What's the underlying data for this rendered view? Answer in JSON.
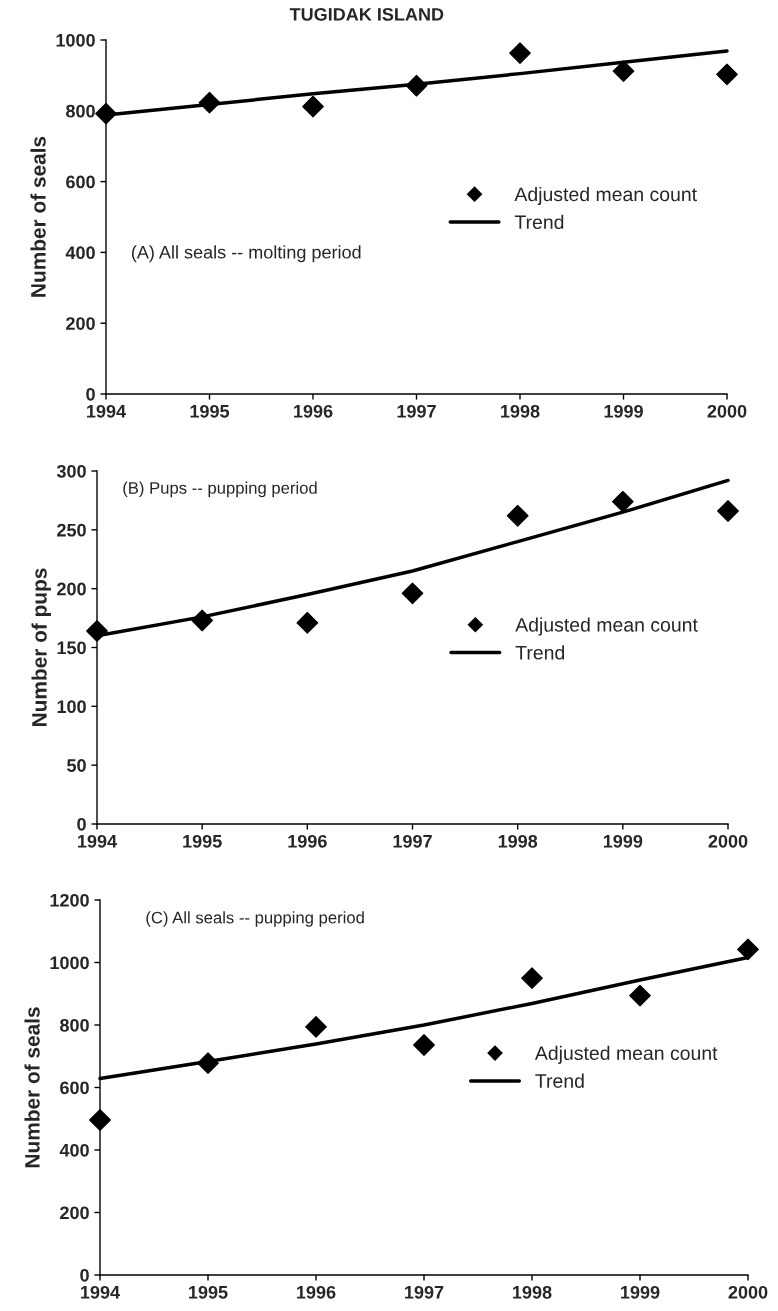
{
  "chart_data": [
    {
      "type": "scatter",
      "title": "TUGIDAK ISLAND",
      "ylabel": "Number of seals",
      "annotations": [
        "(A) All seals -- molting period"
      ],
      "x": [
        1994,
        1995,
        1996,
        1997,
        1998,
        1999,
        2000
      ],
      "xlim": [
        1994,
        2000
      ],
      "xticks": [
        1994,
        1995,
        1996,
        1997,
        1998,
        1999,
        2000
      ],
      "ylim": [
        0,
        1000
      ],
      "yticks": [
        0,
        200,
        400,
        600,
        800,
        1000
      ],
      "grid": false,
      "legend": "right",
      "series": [
        {
          "name": "Adjusted mean count",
          "marker": "diamond",
          "color": "#000000",
          "values": [
            792,
            823,
            812,
            871,
            963,
            912,
            903
          ]
        },
        {
          "name": "Trend",
          "type": "line",
          "marker": "none",
          "line_style": "solid",
          "color": "#000000",
          "values": [
            788,
            818,
            848,
            875,
            905,
            937,
            969
          ]
        }
      ]
    },
    {
      "type": "scatter",
      "ylabel": "Number of pups",
      "annotations": [
        "(B) Pups -- pupping period"
      ],
      "x": [
        1994,
        1995,
        1996,
        1997,
        1998,
        1999,
        2000
      ],
      "xlim": [
        1994,
        2000
      ],
      "xticks": [
        1994,
        1995,
        1996,
        1997,
        1998,
        1999,
        2000
      ],
      "ylim": [
        0,
        300
      ],
      "yticks": [
        0,
        50,
        100,
        150,
        200,
        250,
        300
      ],
      "grid": false,
      "legend": "right",
      "series": [
        {
          "name": "Adjusted mean count",
          "marker": "diamond",
          "color": "#000000",
          "values": [
            164,
            173,
            171,
            196,
            262,
            274,
            266
          ]
        },
        {
          "name": "Trend",
          "type": "line",
          "marker": "none",
          "line_style": "solid",
          "color": "#000000",
          "values": [
            160,
            176,
            195,
            215,
            240,
            265,
            292
          ]
        }
      ]
    },
    {
      "type": "scatter",
      "ylabel": "Number of seals",
      "annotations": [
        "(C) All seals -- pupping period"
      ],
      "x": [
        1994,
        1995,
        1996,
        1997,
        1998,
        1999,
        2000
      ],
      "xlim": [
        1994,
        2000
      ],
      "xticks": [
        1994,
        1995,
        1996,
        1997,
        1998,
        1999,
        2000
      ],
      "ylim": [
        0,
        1200
      ],
      "yticks": [
        0,
        200,
        400,
        600,
        800,
        1000,
        1200
      ],
      "grid": false,
      "legend": "right",
      "series": [
        {
          "name": "Adjusted mean count",
          "marker": "diamond",
          "color": "#000000",
          "values": [
            496,
            678,
            794,
            736,
            950,
            894,
            1042
          ]
        },
        {
          "name": "Trend",
          "type": "line",
          "marker": "none",
          "line_style": "solid",
          "color": "#000000",
          "values": [
            629,
            683,
            739,
            800,
            869,
            944,
            1016
          ]
        }
      ]
    }
  ]
}
